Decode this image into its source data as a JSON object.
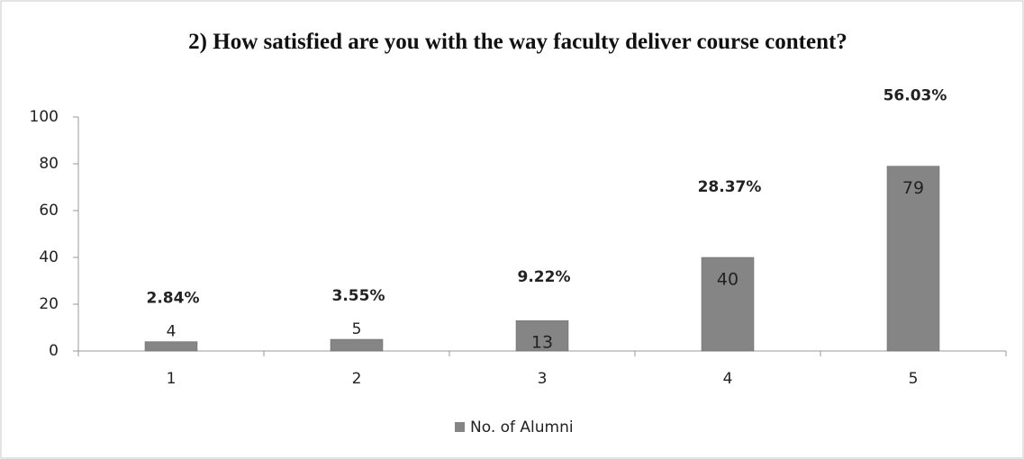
{
  "chart_data": {
    "type": "bar",
    "title": "2) How satisfied are you with the way faculty deliver course content?",
    "categories": [
      "1",
      "2",
      "3",
      "4",
      "5"
    ],
    "series": [
      {
        "name": "No. of Alumni",
        "color": "#858585",
        "values": [
          4,
          5,
          13,
          40,
          79
        ]
      }
    ],
    "annotations": [
      "2.84%",
      "3.55%",
      "9.22%",
      "28.37%",
      "56.03%"
    ],
    "ylim": [
      0,
      100
    ],
    "yticks": [
      0,
      20,
      40,
      60,
      80,
      100
    ],
    "legend": "bottom"
  }
}
